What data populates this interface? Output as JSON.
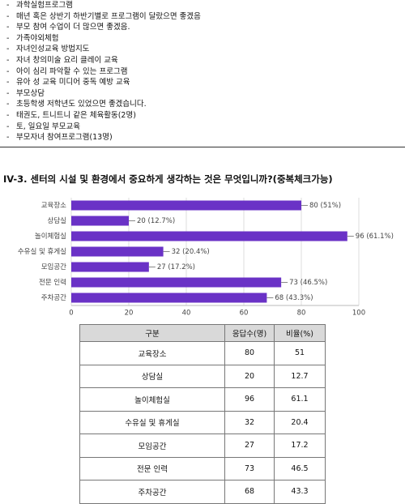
{
  "list": [
    "과학실험프로그램",
    "매년 혹은 상반기 하반기별로 프로그램이 달랐으면 좋겠음",
    "부모 참여 수업이 더 많으면 좋겠음.",
    "가족야외체험",
    "자녀인성교육 방법지도",
    "자녀 창의미술 요리 클레이 교육",
    "아이 심리 파악할 수 있는 프로그램",
    "유아 성 교육 미디어 중독 예방 교육",
    "부모상담",
    "초등학생 저학년도 있었으면 좋겠습니다.",
    "태권도, 트니트니 같은 체육활동(2명)",
    "토, 일요일 부모교육",
    "부모자녀 참여프로그램(13명)"
  ],
  "section_title": "IV-3. 센터의 시설 및 환경에서 중요하게 생각하는 것은 무엇입니까?(중복체크가능)",
  "chart_data": {
    "type": "barh",
    "categories": [
      "교육장소",
      "상담실",
      "놀이체험실",
      "수유실 및 휴게실",
      "모임공간",
      "전문 인력",
      "주차공간"
    ],
    "values": [
      80,
      20,
      96,
      32,
      27,
      73,
      68
    ],
    "value_labels": [
      "80 (51%)",
      "20 (12.7%)",
      "96 (61.1%)",
      "32 (20.4%)",
      "27 (17.2%)",
      "73 (46.5%)",
      "68 (43.3%)"
    ],
    "color": "#6a32c6",
    "xlim": [
      0,
      100
    ],
    "xticks": [
      0,
      20,
      40,
      60,
      80,
      100
    ],
    "grid": true
  },
  "table": {
    "header": [
      "구분",
      "응답수(명)",
      "비율(%)"
    ],
    "rows": [
      [
        "교육장소",
        80,
        51
      ],
      [
        "상담실",
        20,
        12.7
      ],
      [
        "놀이체험실",
        96,
        61.1
      ],
      [
        "수유실 및 휴게실",
        32,
        20.4
      ],
      [
        "모임공간",
        27,
        17.2
      ],
      [
        "전문 인력",
        73,
        46.5
      ],
      [
        "주차공간",
        68,
        43.3
      ]
    ]
  }
}
